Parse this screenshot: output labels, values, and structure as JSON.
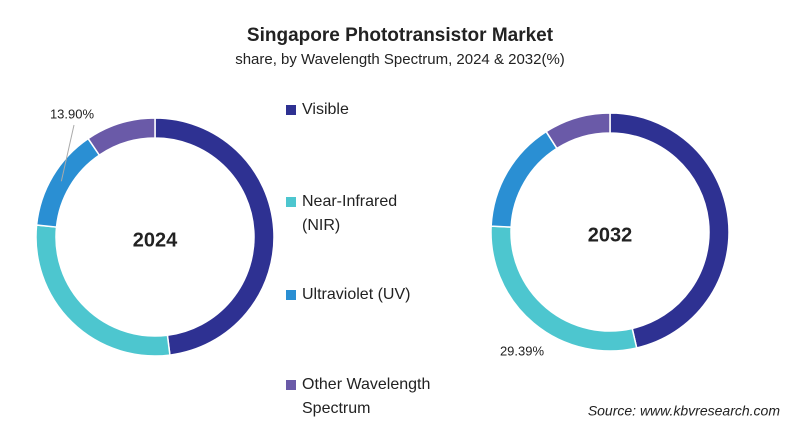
{
  "title": "Singapore Phototransistor Market",
  "subtitle": "share, by Wavelength Spectrum, 2024 & 2032(%)",
  "source": "Source: www.kbvresearch.com",
  "legend": {
    "categories": [
      "Visible",
      "Near-Infrared (NIR)",
      "Ultraviolet (UV)",
      "Other Wavelength Spectrum"
    ],
    "colors": [
      "#2e3192",
      "#4dc6cf",
      "#2a8fd3",
      "#6a5aa8"
    ]
  },
  "chart_data": [
    {
      "type": "donut",
      "label": "2024",
      "values": [
        48.0,
        28.6,
        13.9,
        9.5
      ],
      "value_labels": [
        null,
        null,
        "13.90%",
        null
      ]
    },
    {
      "type": "donut",
      "label": "2032",
      "values": [
        46.4,
        29.39,
        15.2,
        9.01
      ],
      "value_labels": [
        null,
        "29.39%",
        null,
        null
      ]
    }
  ]
}
